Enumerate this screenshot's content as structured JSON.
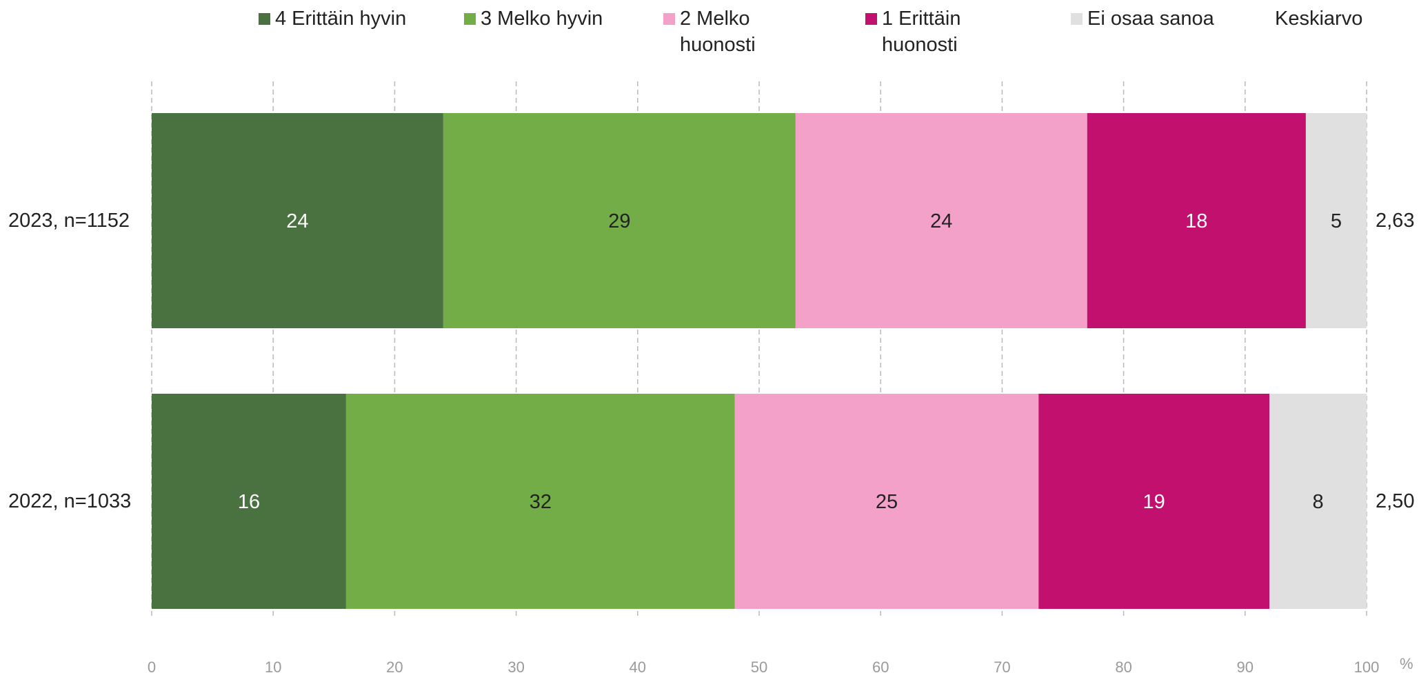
{
  "chart_data": {
    "type": "bar",
    "orientation": "horizontal",
    "stacked": true,
    "categories": [
      "2023, n=1152",
      "2022, n=1033"
    ],
    "series": [
      {
        "name": "4 Erittäin hyvin",
        "values": [
          24,
          16
        ],
        "color": "#4a7140",
        "label_color": "#ffffff"
      },
      {
        "name": "3 Melko hyvin",
        "values": [
          29,
          32
        ],
        "color": "#72ad48",
        "label_color": "#222222"
      },
      {
        "name": "2 Melko huonosti",
        "values": [
          24,
          25
        ],
        "color": "#f3a1c9",
        "label_color": "#222222"
      },
      {
        "name": "1 Erittäin huonosti",
        "values": [
          18,
          19
        ],
        "color": "#c2106e",
        "label_color": "#ffffff"
      },
      {
        "name": "Ei osaa sanoa",
        "values": [
          5,
          8
        ],
        "color": "#e0e0e0",
        "label_color": "#222222"
      }
    ],
    "xlim": [
      0,
      100
    ],
    "xticks": [
      "0",
      "10",
      "20",
      "30",
      "40",
      "50",
      "60",
      "70",
      "80",
      "90",
      "100"
    ],
    "x_unit": "%",
    "grid": "vertical dashed",
    "legend_position": "top",
    "mean_header": "Keskiarvo",
    "means": [
      "2,63",
      "2,50"
    ]
  }
}
